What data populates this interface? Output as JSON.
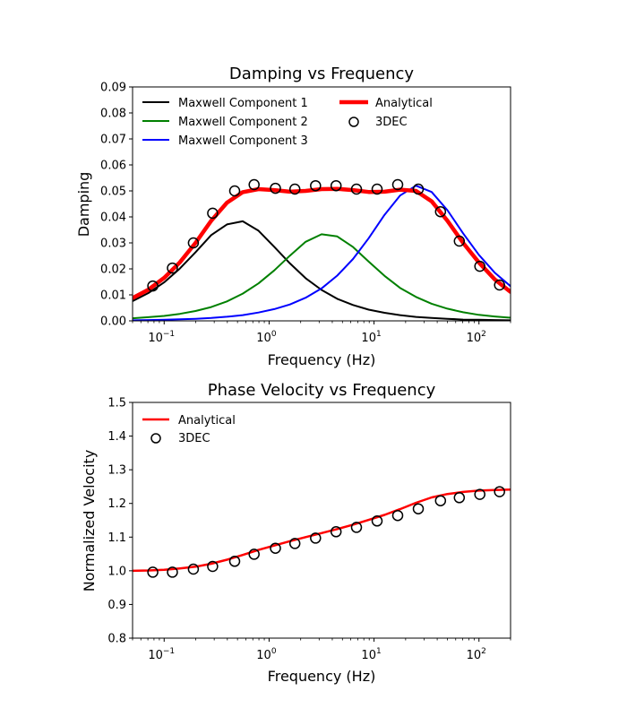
{
  "chart_data": [
    {
      "type": "line",
      "title": "Damping vs Frequency",
      "xlabel": "Frequency (Hz)",
      "ylabel": "Damping",
      "xscale": "log",
      "xlim": [
        0.05,
        200
      ],
      "ylim": [
        0.0,
        0.09
      ],
      "x_ticks": [
        {
          "value": 0.1,
          "base": "10",
          "exp": "−1"
        },
        {
          "value": 1,
          "base": "10",
          "exp": "0"
        },
        {
          "value": 10,
          "base": "10",
          "exp": "1"
        },
        {
          "value": 100,
          "base": "10",
          "exp": "2"
        }
      ],
      "y_ticks": [
        "0.00",
        "0.01",
        "0.02",
        "0.03",
        "0.04",
        "0.05",
        "0.06",
        "0.07",
        "0.08",
        "0.09"
      ],
      "grid": false,
      "legend_position": "top-left (two columns)",
      "x": [
        0.05,
        0.0706,
        0.0998,
        0.141,
        0.199,
        0.281,
        0.397,
        0.561,
        0.792,
        1.12,
        1.58,
        2.23,
        3.16,
        4.46,
        6.3,
        8.89,
        12.6,
        17.7,
        25.1,
        35.4,
        50.0,
        70.6,
        99.8,
        141,
        199
      ],
      "series": [
        {
          "name": "Maxwell Component 1",
          "kind": "line",
          "color": "#000000",
          "width": 2,
          "values": [
            0.0076,
            0.0107,
            0.0148,
            0.0201,
            0.0264,
            0.033,
            0.0371,
            0.0383,
            0.0347,
            0.0285,
            0.0221,
            0.0164,
            0.0119,
            0.0085,
            0.0061,
            0.0043,
            0.0031,
            0.0022,
            0.0015,
            0.0011,
            0.0008,
            0.0005,
            0.0004,
            0.0003,
            0.0002
          ]
        },
        {
          "name": "Maxwell Component 2",
          "kind": "line",
          "color": "#008000",
          "width": 2,
          "values": [
            0.001,
            0.0014,
            0.0019,
            0.0027,
            0.0038,
            0.0053,
            0.0075,
            0.0105,
            0.0144,
            0.0194,
            0.0251,
            0.0304,
            0.0333,
            0.0325,
            0.0284,
            0.0228,
            0.0173,
            0.0127,
            0.0092,
            0.0066,
            0.0047,
            0.0033,
            0.0023,
            0.0017,
            0.0012
          ]
        },
        {
          "name": "Maxwell Component 3",
          "kind": "line",
          "color": "#0000ff",
          "width": 2,
          "values": [
            0.0002,
            0.0003,
            0.0004,
            0.0006,
            0.0008,
            0.0011,
            0.0016,
            0.0022,
            0.0032,
            0.0045,
            0.0063,
            0.0089,
            0.0125,
            0.0174,
            0.0238,
            0.0318,
            0.0408,
            0.0482,
            0.052,
            0.0496,
            0.0426,
            0.0337,
            0.0254,
            0.0186,
            0.0134
          ]
        },
        {
          "name": "Analytical",
          "kind": "line",
          "color": "#ff0000",
          "width": 4.5,
          "values": [
            0.0088,
            0.012,
            0.0165,
            0.0225,
            0.03,
            0.0385,
            0.0455,
            0.0495,
            0.0507,
            0.0503,
            0.0497,
            0.05,
            0.0507,
            0.0508,
            0.0503,
            0.0496,
            0.0497,
            0.0505,
            0.05,
            0.046,
            0.0385,
            0.03,
            0.0225,
            0.016,
            0.0112
          ]
        },
        {
          "name": "3DEC",
          "kind": "scatter",
          "color": "#000000",
          "x": [
            0.078,
            0.12,
            0.19,
            0.29,
            0.47,
            0.72,
            1.15,
            1.76,
            2.77,
            4.35,
            6.8,
            10.7,
            16.8,
            26.4,
            43,
            65,
            102,
            157
          ],
          "values": [
            0.0134,
            0.0203,
            0.03,
            0.0414,
            0.05,
            0.0524,
            0.051,
            0.0507,
            0.052,
            0.052,
            0.0507,
            0.0507,
            0.0524,
            0.0507,
            0.042,
            0.0307,
            0.021,
            0.0138
          ]
        }
      ],
      "legend": [
        {
          "label": "Maxwell Component 1",
          "color": "#000000",
          "kind": "line"
        },
        {
          "label": "Maxwell Component 2",
          "color": "#008000",
          "kind": "line"
        },
        {
          "label": "Maxwell Component 3",
          "color": "#0000ff",
          "kind": "line"
        },
        {
          "label": "Analytical",
          "color": "#ff0000",
          "kind": "thick-line"
        },
        {
          "label": "3DEC",
          "color": "#000000",
          "kind": "marker"
        }
      ]
    },
    {
      "type": "line",
      "title": "Phase Velocity vs Frequency",
      "xlabel": "Frequency (Hz)",
      "ylabel": "Normalized Velocity",
      "xscale": "log",
      "xlim": [
        0.05,
        200
      ],
      "ylim": [
        0.8,
        1.5
      ],
      "x_ticks": [
        {
          "value": 0.1,
          "base": "10",
          "exp": "−1"
        },
        {
          "value": 1,
          "base": "10",
          "exp": "0"
        },
        {
          "value": 10,
          "base": "10",
          "exp": "1"
        },
        {
          "value": 100,
          "base": "10",
          "exp": "2"
        }
      ],
      "y_ticks": [
        "0.8",
        "0.9",
        "1.0",
        "1.1",
        "1.2",
        "1.3",
        "1.4",
        "1.5"
      ],
      "grid": false,
      "legend_position": "top-left",
      "x": [
        0.05,
        0.0706,
        0.0998,
        0.141,
        0.199,
        0.281,
        0.397,
        0.561,
        0.792,
        1.12,
        1.58,
        2.23,
        3.16,
        4.46,
        6.3,
        8.89,
        12.6,
        17.7,
        25.1,
        35.4,
        50.0,
        70.6,
        99.8,
        141,
        199
      ],
      "series": [
        {
          "name": "Analytical",
          "kind": "line",
          "color": "#ff0000",
          "width": 2.5,
          "values": [
            1.0,
            1.001,
            1.003,
            1.007,
            1.012,
            1.021,
            1.033,
            1.047,
            1.062,
            1.075,
            1.088,
            1.1,
            1.112,
            1.124,
            1.137,
            1.151,
            1.166,
            1.183,
            1.202,
            1.218,
            1.228,
            1.234,
            1.238,
            1.24,
            1.241
          ]
        },
        {
          "name": "3DEC",
          "kind": "scatter",
          "color": "#000000",
          "x": [
            0.078,
            0.12,
            0.19,
            0.29,
            0.47,
            0.72,
            1.15,
            1.76,
            2.77,
            4.35,
            6.8,
            10.7,
            16.8,
            26.4,
            43,
            65,
            102,
            157
          ],
          "values": [
            0.996,
            0.996,
            1.005,
            1.013,
            1.028,
            1.049,
            1.067,
            1.081,
            1.097,
            1.116,
            1.129,
            1.148,
            1.164,
            1.184,
            1.208,
            1.217,
            1.227,
            1.235
          ]
        }
      ],
      "legend": [
        {
          "label": "Analytical",
          "color": "#ff0000",
          "kind": "line"
        },
        {
          "label": "3DEC",
          "color": "#000000",
          "kind": "marker"
        }
      ]
    }
  ]
}
